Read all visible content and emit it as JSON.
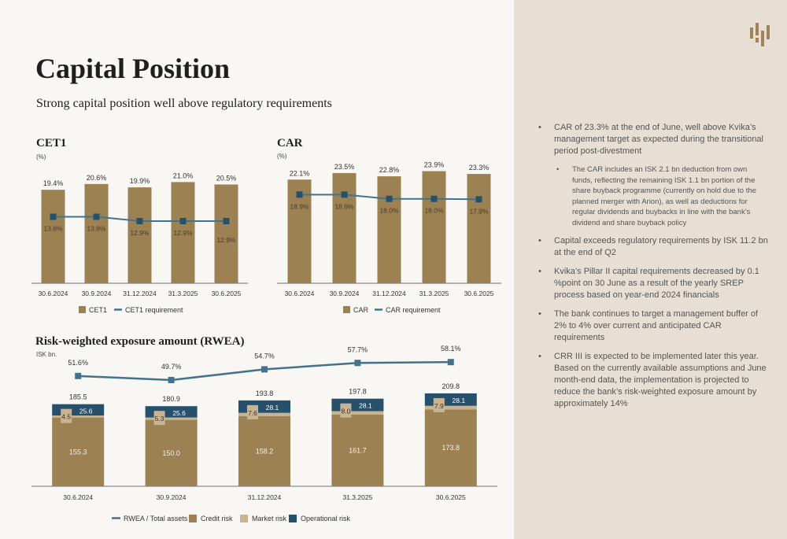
{
  "page": {
    "title": "Capital Position",
    "subtitle": "Strong capital position well above regulatory requirements"
  },
  "colors": {
    "gold": "#9c8153",
    "light_beige": "#c8b493",
    "navy": "#26506c",
    "line": "#44728c",
    "sidebar_bg": "#e7dfd3",
    "page_bg": "#f8f7f4"
  },
  "logo": {
    "icon": "kvika-logo-icon"
  },
  "cet1": {
    "title": "CET1",
    "unit": "(%)"
  },
  "car": {
    "title": "CAR",
    "unit": "(%)"
  },
  "rwea": {
    "title": "Risk-weighted exposure amount (RWEA)",
    "unit": "ISK bn."
  },
  "chart_data": [
    {
      "type": "bar",
      "title": "CET1",
      "ylabel": "(%)",
      "categories": [
        "30.6.2024",
        "30.9.2024",
        "31.12.2024",
        "31.3.2025",
        "30.6.2025"
      ],
      "series": [
        {
          "name": "CET1",
          "kind": "bar",
          "color": "#9c8153",
          "values": [
            19.4,
            20.6,
            19.9,
            21.0,
            20.5
          ],
          "labels": [
            "19.4%",
            "20.6%",
            "19.9%",
            "21.0%",
            "20.5%"
          ]
        },
        {
          "name": "CET1 requirement",
          "kind": "line",
          "color": "#44728c",
          "values": [
            13.8,
            13.8,
            12.9,
            12.9,
            12.9
          ],
          "labels": [
            "13.8%",
            "13.8%",
            "12.9%",
            "12.9%",
            "12.9%"
          ]
        }
      ],
      "ylim": [
        0,
        24
      ],
      "grid": false,
      "legend": "bottom"
    },
    {
      "type": "bar",
      "title": "CAR",
      "ylabel": "(%)",
      "categories": [
        "30.6.2024",
        "30.9.2024",
        "31.12.2024",
        "31.3.2025",
        "30.6.2025"
      ],
      "series": [
        {
          "name": "CAR",
          "kind": "bar",
          "color": "#9c8153",
          "values": [
            22.1,
            23.5,
            22.8,
            23.9,
            23.3
          ],
          "labels": [
            "22.1%",
            "23.5%",
            "22.8%",
            "23.9%",
            "23.3%"
          ]
        },
        {
          "name": "CAR requirement",
          "kind": "line",
          "color": "#44728c",
          "values": [
            18.9,
            18.9,
            18.0,
            18.0,
            17.9
          ],
          "labels": [
            "18.9%",
            "18.9%",
            "18.0%",
            "18.0%",
            "17.9%"
          ]
        }
      ],
      "ylim": [
        0,
        26
      ],
      "grid": false,
      "legend": "bottom"
    },
    {
      "type": "bar",
      "stacked": true,
      "title": "Risk-weighted exposure amount (RWEA)",
      "ylabel": "ISK bn.",
      "categories": [
        "30.6.2024",
        "30.9.2024",
        "31.12.2024",
        "31.3.2025",
        "30.6.2025"
      ],
      "series": [
        {
          "name": "Credit risk",
          "kind": "bar",
          "color": "#9c8153",
          "values": [
            155.3,
            150.0,
            158.2,
            161.7,
            173.8
          ],
          "labels": [
            "155.3",
            "150.0",
            "158.2",
            "161.7",
            "173.8"
          ]
        },
        {
          "name": "Market risk",
          "kind": "bar",
          "color": "#c8b493",
          "values": [
            4.5,
            5.3,
            7.6,
            8.0,
            7.9
          ],
          "labels": [
            "4.5",
            "5.3",
            "7.6",
            "8.0",
            "7.9"
          ]
        },
        {
          "name": "Operational risk",
          "kind": "bar",
          "color": "#26506c",
          "values": [
            25.6,
            25.6,
            28.1,
            28.1,
            28.1
          ],
          "labels": [
            "25.6",
            "25.6",
            "28.1",
            "28.1",
            "28.1"
          ]
        },
        {
          "name": "RWEA / Total assets",
          "kind": "line",
          "color": "#44728c",
          "values": [
            51.6,
            49.7,
            54.7,
            57.7,
            58.1
          ],
          "labels": [
            "51.6%",
            "49.7%",
            "54.7%",
            "57.7%",
            "58.1%"
          ]
        }
      ],
      "totals": [
        "185.5",
        "180.9",
        "193.8",
        "197.8",
        "209.8"
      ],
      "ylim": [
        0,
        215
      ],
      "line_ylim": [
        0,
        60
      ],
      "legend_order": [
        "RWEA / Total assets",
        "Credit risk",
        "Market risk",
        "Operational risk"
      ],
      "grid": false,
      "legend": "bottom"
    }
  ],
  "bullets": [
    {
      "level": 1,
      "text": "CAR of 23.3% at the end of June, well above Kvika’s management target as expected during the transitional period post-divestment"
    },
    {
      "level": 2,
      "text": "The CAR includes an ISK 2.1 bn deduction from own funds, reflecting the remaining ISK 1.1 bn portion of the share buyback programme (currently on hold due to the planned merger with Arion), as well as deductions for regular dividends and buybacks in line with the bank’s dividend and share buyback policy"
    },
    {
      "level": 1,
      "text": "Capital exceeds regulatory requirements by ISK 11.2 bn at the end of Q2"
    },
    {
      "level": 1,
      "text": "Kvika’s Pillar II capital requirements decreased by 0.1 %point on 30 June as a result of the yearly SREP process based on year-end 2024 financials"
    },
    {
      "level": 1,
      "text": "The bank continues to target a management buffer of 2% to 4% over current and anticipated CAR requirements"
    },
    {
      "level": 1,
      "text": "CRR III is expected to be implemented later this year. Based on the currently available assumptions and June month-end data, the implementation is projected to reduce the bank’s risk-weighted exposure amount by approximately 14%"
    }
  ]
}
